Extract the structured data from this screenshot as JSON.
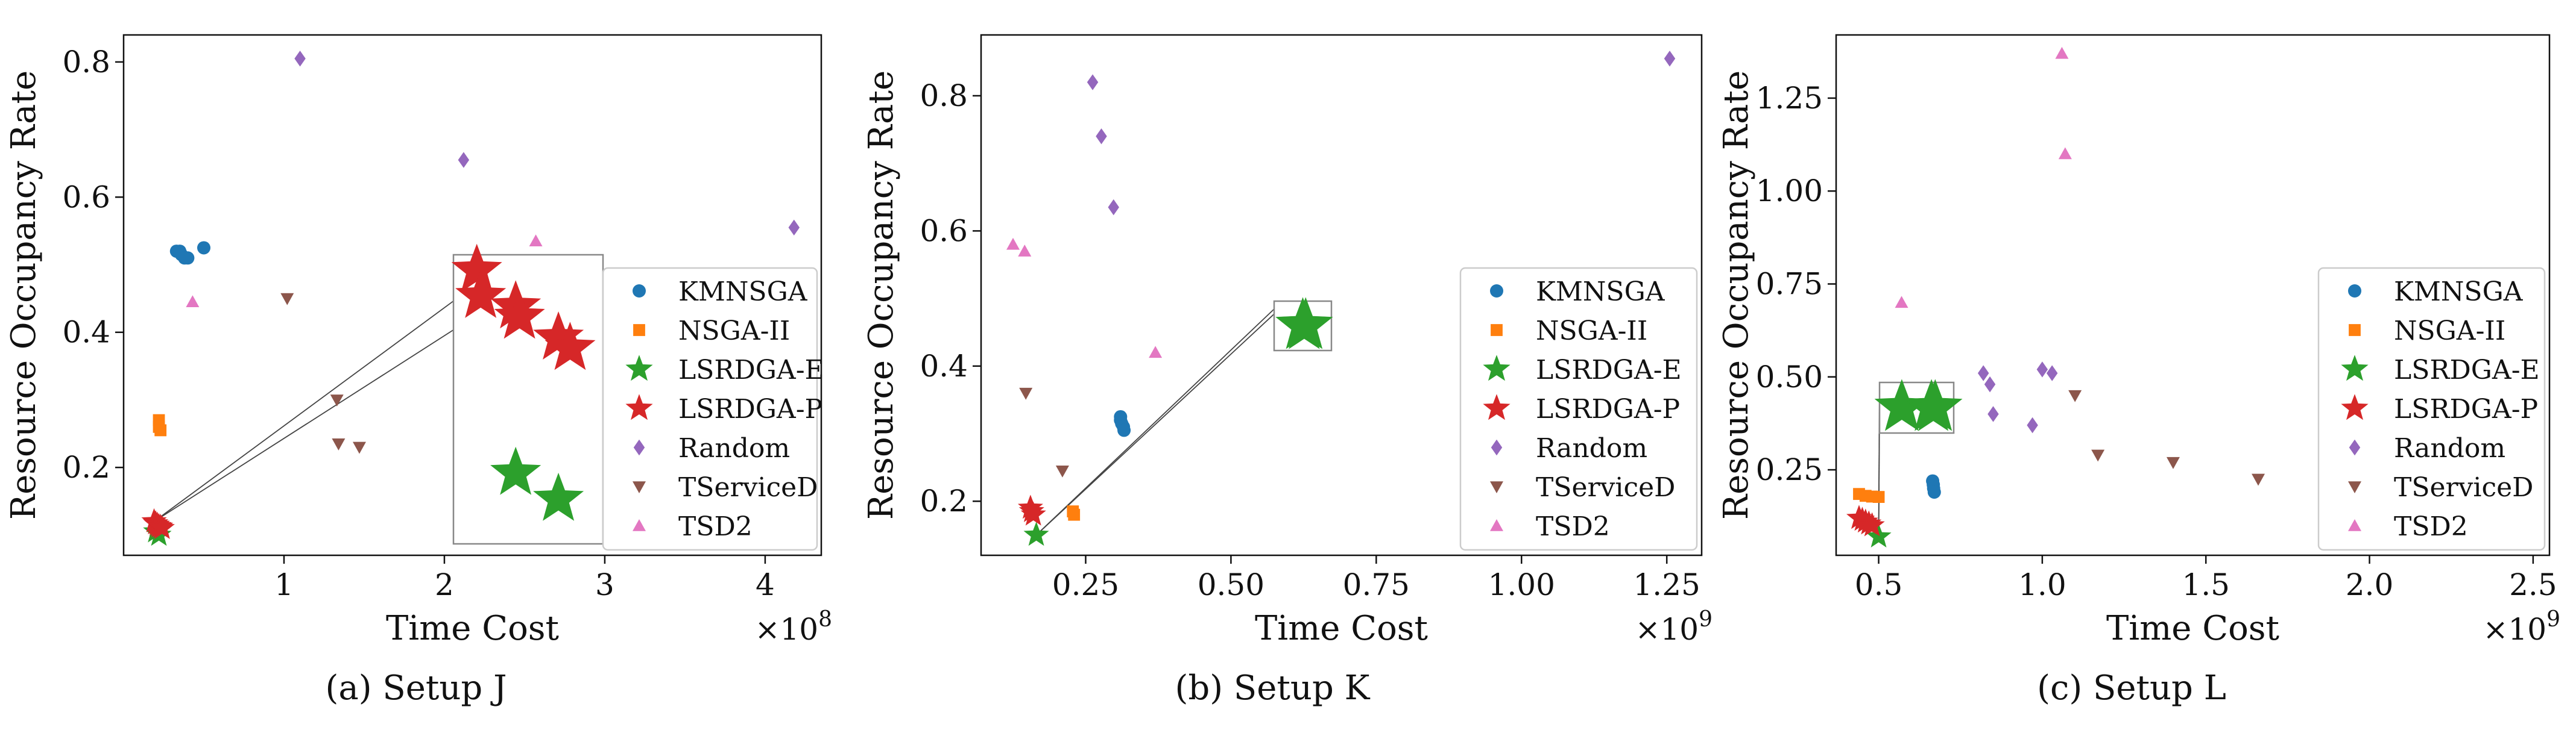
{
  "colors": {
    "KMNSGA": "#1f77b4",
    "NSGA-II": "#ff7f0e",
    "LSRDGA-E": "#2ca02c",
    "LSRDGA-P": "#d62728",
    "Random": "#9467bd",
    "TServiceD": "#8c564b",
    "TSD2": "#e377c2"
  },
  "legend_entries": [
    {
      "label": "KMNSGA",
      "marker": "circle"
    },
    {
      "label": "NSGA-II",
      "marker": "square"
    },
    {
      "label": "LSRDGA-E",
      "marker": "star"
    },
    {
      "label": "LSRDGA-P",
      "marker": "star"
    },
    {
      "label": "Random",
      "marker": "diamond"
    },
    {
      "label": "TServiceD",
      "marker": "triangle-down"
    },
    {
      "label": "TSD2",
      "marker": "triangle-up"
    }
  ],
  "chart_data": [
    {
      "type": "scatter",
      "caption": "(a) Setup J",
      "xlabel": "Time Cost",
      "ylabel": "Resource Occupancy Rate",
      "x_multiplier": "×10^8",
      "x_multiplier_base": "×10",
      "x_multiplier_exp": "8",
      "xlim": [
        0.0,
        4.35
      ],
      "ylim": [
        0.07,
        0.84
      ],
      "xticks": [
        1,
        2,
        3,
        4
      ],
      "yticks": [
        0.2,
        0.4,
        0.6,
        0.8
      ],
      "xtick_labels": [
        "1",
        "2",
        "3",
        "4"
      ],
      "ytick_labels": [
        "0.2",
        "0.4",
        "0.6",
        "0.8"
      ],
      "legend_position": "right",
      "series": [
        {
          "name": "KMNSGA",
          "points": [
            [
              0.33,
              0.52
            ],
            [
              0.35,
              0.52
            ],
            [
              0.36,
              0.515
            ],
            [
              0.38,
              0.51
            ],
            [
              0.4,
              0.51
            ],
            [
              0.5,
              0.525
            ]
          ]
        },
        {
          "name": "NSGA-II",
          "points": [
            [
              0.22,
              0.27
            ],
            [
              0.22,
              0.26
            ],
            [
              0.23,
              0.255
            ]
          ]
        },
        {
          "name": "LSRDGA-E",
          "points": [
            [
              0.2,
              0.105
            ],
            [
              0.22,
              0.1
            ]
          ]
        },
        {
          "name": "LSRDGA-P",
          "points": [
            [
              0.19,
              0.12
            ],
            [
              0.2,
              0.117
            ],
            [
              0.21,
              0.115
            ],
            [
              0.22,
              0.113
            ],
            [
              0.23,
              0.112
            ],
            [
              0.24,
              0.11
            ]
          ]
        },
        {
          "name": "Random",
          "points": [
            [
              1.1,
              0.805
            ],
            [
              2.12,
              0.655
            ],
            [
              4.18,
              0.555
            ]
          ]
        },
        {
          "name": "TServiceD",
          "points": [
            [
              1.02,
              0.45
            ],
            [
              1.33,
              0.3
            ],
            [
              1.34,
              0.235
            ],
            [
              1.47,
              0.23
            ]
          ]
        },
        {
          "name": "TSD2",
          "points": [
            [
              0.43,
              0.445
            ],
            [
              2.57,
              0.535
            ]
          ]
        }
      ],
      "inset": {
        "zoom_series": [
          "LSRDGA-P",
          "LSRDGA-E"
        ]
      }
    },
    {
      "type": "scatter",
      "caption": "(b) Setup K",
      "xlabel": "Time Cost",
      "ylabel": "Resource Occupancy Rate",
      "x_multiplier": "×10^9",
      "x_multiplier_base": "×10",
      "x_multiplier_exp": "9",
      "xlim": [
        0.07,
        1.31
      ],
      "ylim": [
        0.12,
        0.89
      ],
      "xticks": [
        0.25,
        0.5,
        0.75,
        1.0,
        1.25
      ],
      "yticks": [
        0.2,
        0.4,
        0.6,
        0.8
      ],
      "xtick_labels": [
        "0.25",
        "0.50",
        "0.75",
        "1.00",
        "1.25"
      ],
      "ytick_labels": [
        "0.2",
        "0.4",
        "0.6",
        "0.8"
      ],
      "legend_position": "right",
      "series": [
        {
          "name": "KMNSGA",
          "points": [
            [
              0.31,
              0.325
            ],
            [
              0.31,
              0.32
            ],
            [
              0.312,
              0.315
            ],
            [
              0.315,
              0.31
            ],
            [
              0.316,
              0.305
            ]
          ]
        },
        {
          "name": "NSGA-II",
          "points": [
            [
              0.228,
              0.185
            ],
            [
              0.23,
              0.18
            ]
          ]
        },
        {
          "name": "LSRDGA-E",
          "points": [
            [
              0.165,
              0.15
            ]
          ]
        },
        {
          "name": "LSRDGA-P",
          "points": [
            [
              0.155,
              0.19
            ],
            [
              0.157,
              0.185
            ],
            [
              0.16,
              0.18
            ]
          ]
        },
        {
          "name": "Random",
          "points": [
            [
              0.262,
              0.82
            ],
            [
              0.277,
              0.74
            ],
            [
              0.298,
              0.635
            ],
            [
              1.255,
              0.855
            ]
          ]
        },
        {
          "name": "TServiceD",
          "points": [
            [
              0.147,
              0.36
            ],
            [
              0.21,
              0.245
            ]
          ]
        },
        {
          "name": "TSD2",
          "points": [
            [
              0.125,
              0.58
            ],
            [
              0.145,
              0.57
            ],
            [
              0.37,
              0.42
            ]
          ]
        }
      ],
      "inset": {
        "zoom_series": [
          "LSRDGA-E"
        ]
      }
    },
    {
      "type": "scatter",
      "caption": "(c) Setup L",
      "xlabel": "Time Cost",
      "ylabel": "Resource Occupancy Rate",
      "x_multiplier": "×10^9",
      "x_multiplier_base": "×10",
      "x_multiplier_exp": "9",
      "xlim": [
        0.37,
        2.55
      ],
      "ylim": [
        0.02,
        1.42
      ],
      "xticks": [
        0.5,
        1.0,
        1.5,
        2.0,
        2.5
      ],
      "yticks": [
        0.25,
        0.5,
        0.75,
        1.0,
        1.25
      ],
      "xtick_labels": [
        "0.5",
        "1.0",
        "1.5",
        "2.0",
        "2.5"
      ],
      "ytick_labels": [
        "0.25",
        "0.50",
        "0.75",
        "1.00",
        "1.25"
      ],
      "legend_position": "right",
      "series": [
        {
          "name": "KMNSGA",
          "points": [
            [
              0.665,
              0.22
            ],
            [
              0.667,
              0.21
            ],
            [
              0.668,
              0.2
            ],
            [
              0.67,
              0.19
            ]
          ]
        },
        {
          "name": "NSGA-II",
          "points": [
            [
              0.44,
              0.185
            ],
            [
              0.46,
              0.18
            ],
            [
              0.48,
              0.178
            ],
            [
              0.5,
              0.177
            ]
          ]
        },
        {
          "name": "LSRDGA-E",
          "points": [
            [
              0.5,
              0.07
            ]
          ]
        },
        {
          "name": "LSRDGA-P",
          "points": [
            [
              0.44,
              0.12
            ],
            [
              0.45,
              0.115
            ],
            [
              0.46,
              0.11
            ],
            [
              0.47,
              0.105
            ],
            [
              0.48,
              0.1
            ]
          ]
        },
        {
          "name": "Random",
          "points": [
            [
              0.82,
              0.51
            ],
            [
              0.84,
              0.48
            ],
            [
              0.85,
              0.4
            ],
            [
              0.97,
              0.37
            ],
            [
              1.0,
              0.52
            ],
            [
              1.03,
              0.51
            ]
          ]
        },
        {
          "name": "TServiceD",
          "points": [
            [
              1.1,
              0.45
            ],
            [
              1.17,
              0.29
            ],
            [
              1.4,
              0.27
            ],
            [
              1.66,
              0.225
            ]
          ]
        },
        {
          "name": "TSD2",
          "points": [
            [
              0.57,
              0.7
            ],
            [
              1.06,
              1.37
            ],
            [
              1.07,
              1.1
            ]
          ]
        }
      ],
      "inset": {
        "zoom_series": [
          "LSRDGA-E"
        ]
      }
    }
  ]
}
